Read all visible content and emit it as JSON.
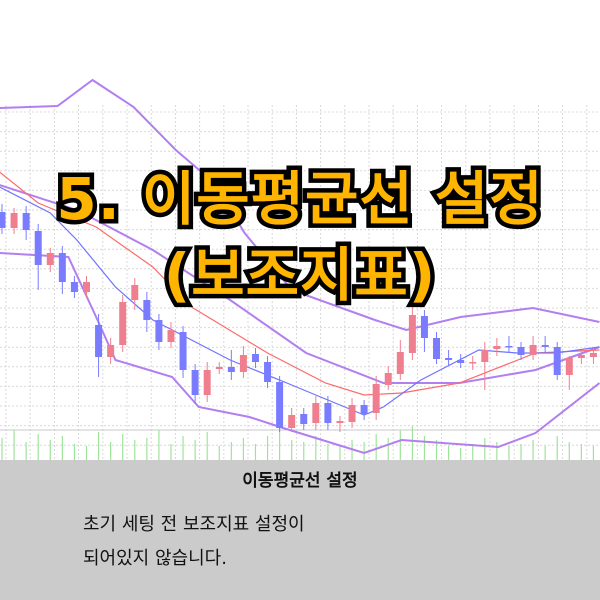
{
  "headline": {
    "line1": "5. 이동평균선 설정",
    "line2": "(보조지표)",
    "fill_color": "#FFB400",
    "stroke_color": "#000000"
  },
  "panel": {
    "title": "이동평균선 설정",
    "lines": [
      "초기 세팅 전 보조지표 설정이",
      "되어있지 않습니다."
    ],
    "background": "#cbcbcb"
  },
  "chart_data": {
    "type": "candlestick",
    "grid": true,
    "colors": {
      "up": "#ef7f8f",
      "down": "#7a7cff",
      "ma_short": "#6f73ff",
      "ma_long": "#ff6a6a",
      "bollinger": "#b27ef0",
      "volume": "#9fe39a"
    },
    "ohlc": [
      [
        248,
        256,
        226,
        232
      ],
      [
        232,
        252,
        226,
        247
      ],
      [
        247,
        254,
        220,
        230
      ],
      [
        229,
        236,
        170,
        195
      ],
      [
        195,
        212,
        188,
        207
      ],
      [
        207,
        214,
        166,
        178
      ],
      [
        178,
        184,
        162,
        168
      ],
      [
        168,
        184,
        162,
        178
      ],
      [
        135,
        146,
        83,
        103
      ],
      [
        103,
        122,
        96,
        115
      ],
      [
        115,
        165,
        108,
        158
      ],
      [
        160,
        182,
        150,
        175
      ],
      [
        160,
        168,
        128,
        140
      ],
      [
        140,
        146,
        110,
        118
      ],
      [
        118,
        138,
        112,
        130
      ],
      [
        128,
        134,
        82,
        90
      ],
      [
        90,
        96,
        56,
        65
      ],
      [
        65,
        98,
        58,
        90
      ],
      [
        91,
        98,
        86,
        93
      ],
      [
        93,
        110,
        80,
        88
      ],
      [
        88,
        114,
        82,
        105
      ],
      [
        106,
        112,
        92,
        98
      ],
      [
        98,
        104,
        72,
        78
      ],
      [
        78,
        84,
        28,
        32
      ],
      [
        32,
        52,
        28,
        45
      ],
      [
        46,
        52,
        30,
        36
      ],
      [
        37,
        64,
        30,
        57
      ],
      [
        57,
        64,
        30,
        37
      ],
      [
        37,
        44,
        28,
        39
      ],
      [
        38,
        62,
        32,
        55
      ],
      [
        55,
        60,
        40,
        46
      ],
      [
        47,
        84,
        40,
        76
      ],
      [
        75,
        94,
        70,
        87
      ],
      [
        86,
        120,
        80,
        108
      ],
      [
        107,
        160,
        100,
        145
      ],
      [
        144,
        150,
        108,
        122
      ],
      [
        122,
        128,
        96,
        101
      ],
      [
        102,
        110,
        94,
        100
      ],
      [
        100,
        106,
        92,
        97
      ],
      [
        97,
        104,
        90,
        98
      ],
      [
        98,
        118,
        70,
        110
      ],
      [
        111,
        122,
        104,
        114
      ],
      [
        114,
        124,
        108,
        113
      ],
      [
        113,
        118,
        100,
        105
      ],
      [
        105,
        124,
        100,
        115
      ],
      [
        115,
        124,
        108,
        113
      ],
      [
        113,
        118,
        80,
        85
      ],
      [
        85,
        104,
        70,
        102
      ],
      [
        102,
        110,
        96,
        105
      ],
      [
        103,
        112,
        96,
        107
      ]
    ],
    "volume": [
      22,
      30,
      18,
      26,
      20,
      24,
      16,
      14,
      28,
      18,
      26,
      20,
      22,
      30,
      16,
      24,
      20,
      28,
      14,
      18,
      22,
      16,
      24,
      34,
      20,
      18,
      24,
      16,
      14,
      20,
      18,
      26,
      22,
      30,
      34,
      24,
      20,
      14,
      12,
      16,
      22,
      18,
      14,
      16,
      20,
      14,
      24,
      18,
      16,
      14
    ],
    "ma_short": [
      [
        -0.2,
        273
      ],
      [
        4,
        247
      ],
      [
        6.2,
        220
      ],
      [
        9.4,
        173
      ],
      [
        12.5,
        140
      ],
      [
        15.7,
        120
      ],
      [
        18.9,
        100
      ],
      [
        23.6,
        77
      ],
      [
        28.4,
        53
      ],
      [
        30,
        45
      ],
      [
        31.6,
        53
      ],
      [
        34.7,
        80
      ],
      [
        39.5,
        110
      ],
      [
        42.7,
        107
      ],
      [
        45.9,
        107
      ],
      [
        49.5,
        113
      ]
    ],
    "ma_long": [
      [
        -0.2,
        288
      ],
      [
        3,
        257
      ],
      [
        7.8,
        233
      ],
      [
        12.5,
        193
      ],
      [
        15.7,
        153
      ],
      [
        22,
        107
      ],
      [
        26.8,
        77
      ],
      [
        30,
        65
      ],
      [
        33.1,
        67
      ],
      [
        37.9,
        77
      ],
      [
        44.2,
        107
      ],
      [
        49.5,
        110
      ]
    ],
    "bollinger_upper": [
      [
        -0.2,
        352
      ],
      [
        4.6,
        354
      ],
      [
        7.5,
        380
      ],
      [
        10.9,
        353
      ],
      [
        14.4,
        310
      ],
      [
        17.6,
        277
      ],
      [
        20.1,
        227
      ],
      [
        24,
        170
      ],
      [
        30.9,
        140
      ],
      [
        33.5,
        130
      ],
      [
        38,
        143
      ],
      [
        44,
        152
      ],
      [
        49.5,
        138
      ]
    ],
    "bollinger_mid": [
      [
        -0.2,
        275
      ],
      [
        6.2,
        250
      ],
      [
        12.5,
        210
      ],
      [
        18.9,
        160
      ],
      [
        25.2,
        107
      ],
      [
        31.6,
        77
      ],
      [
        37.9,
        77
      ],
      [
        44.2,
        90
      ],
      [
        49.5,
        113
      ]
    ],
    "bollinger_lower": [
      [
        -0.2,
        207
      ],
      [
        5.5,
        203
      ],
      [
        7.8,
        143
      ],
      [
        9.4,
        100
      ],
      [
        14.1,
        83
      ],
      [
        16.3,
        53
      ],
      [
        20.5,
        43
      ],
      [
        23.3,
        32
      ],
      [
        28.4,
        13
      ],
      [
        30,
        7
      ],
      [
        33.1,
        20
      ],
      [
        41.1,
        13
      ],
      [
        44.2,
        27
      ],
      [
        49.5,
        77
      ]
    ]
  }
}
